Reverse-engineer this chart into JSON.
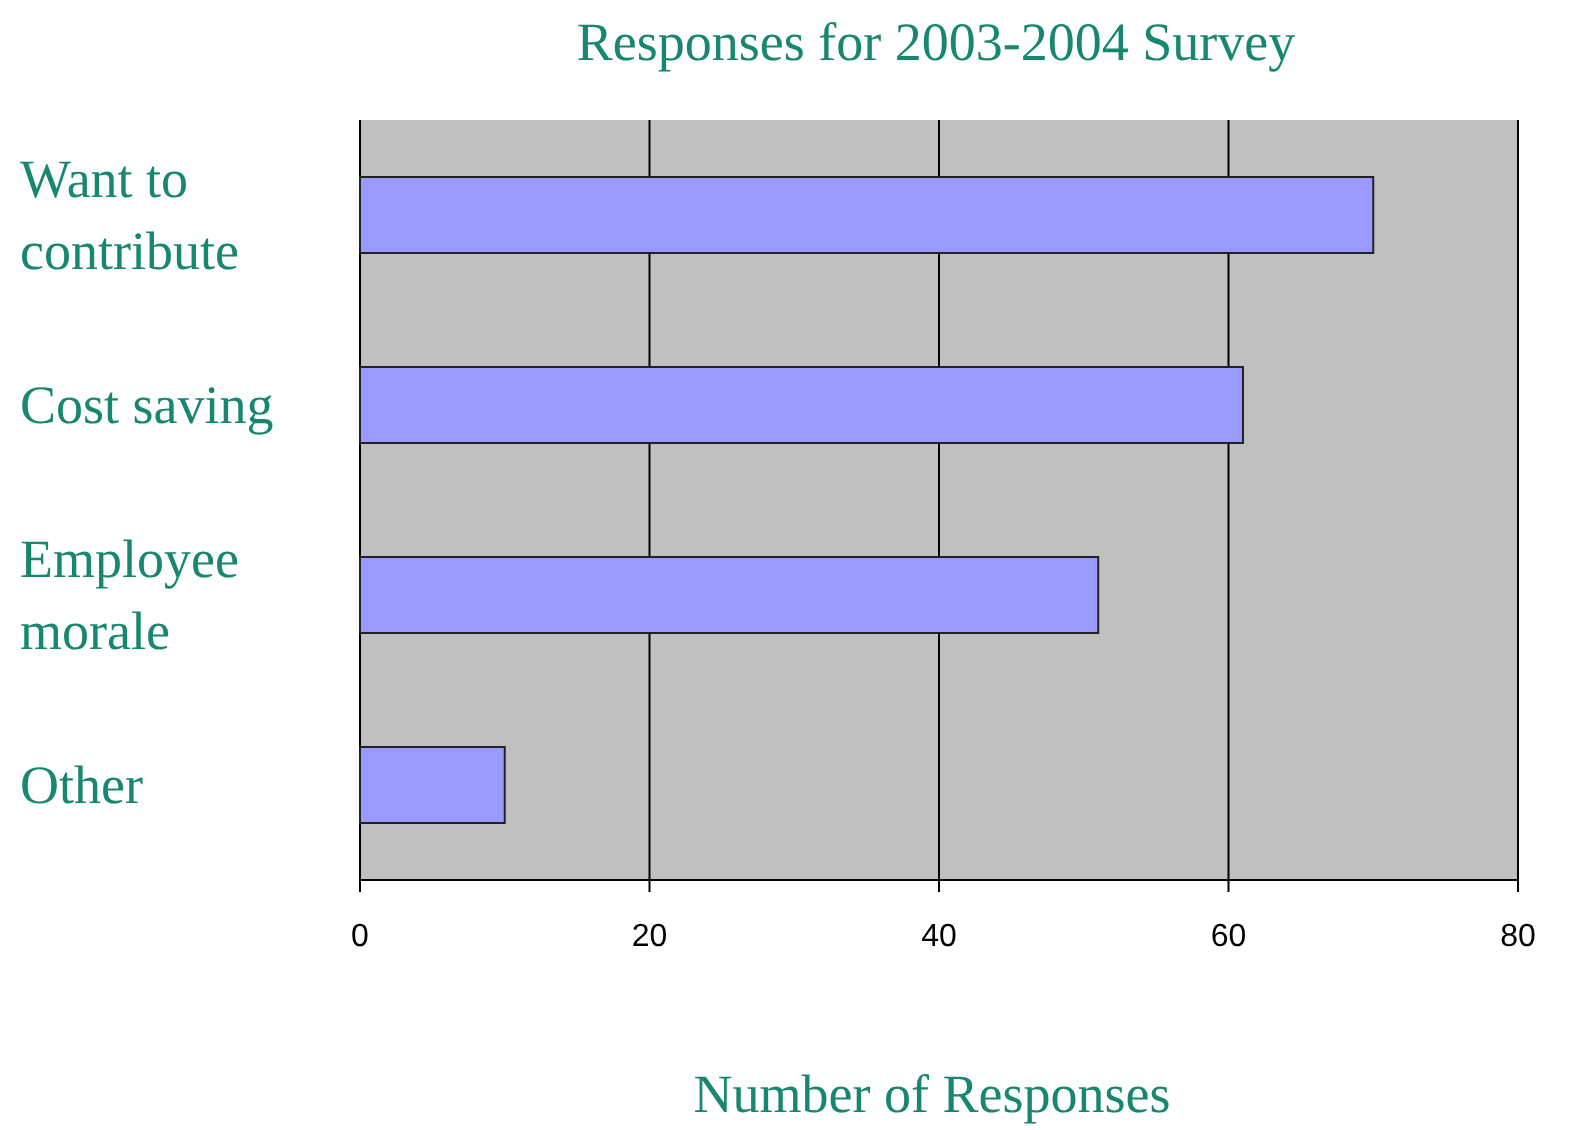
{
  "chart_data": {
    "type": "bar",
    "orientation": "horizontal",
    "title": "Responses for 2003-2004 Survey",
    "xlabel": "Number of Responses",
    "categories": [
      "Want to contribute",
      "Cost saving",
      "Employee morale",
      "Other"
    ],
    "values": [
      70,
      61,
      51,
      10
    ],
    "color": "#9999ff",
    "xlim": [
      0,
      80
    ],
    "xticks": [
      0,
      20,
      40,
      60,
      80
    ],
    "grid": "x"
  }
}
